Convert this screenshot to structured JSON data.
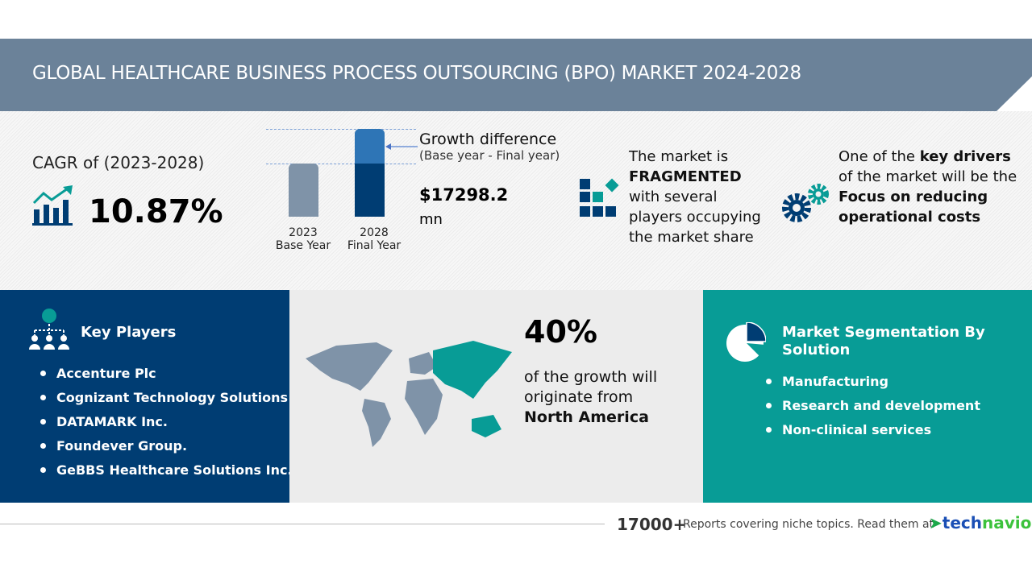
{
  "header": {
    "title": "GLOBAL HEALTHCARE BUSINESS PROCESS OUTSOURCING (BPO) MARKET 2024-2028"
  },
  "cagr": {
    "label": "CAGR of (2023-2028)",
    "value": "10.87%",
    "icon": "growth-chart-icon"
  },
  "growth": {
    "base_year": "2023",
    "base_label": "Base Year",
    "final_year": "2028",
    "final_label": "Final Year",
    "title": "Growth difference",
    "subtitle": "(Base year - Final year)",
    "value": "$17298.2",
    "unit": "mn"
  },
  "market": {
    "line1": "The market is",
    "bold": "FRAGMENTED",
    "rest": "with several players occupying the market share"
  },
  "drivers": {
    "pre": "One of the ",
    "bold1": "key drivers",
    "mid": " of the market will be the ",
    "bold2": "Focus on reducing operational costs"
  },
  "key_players": {
    "title": "Key Players",
    "items": [
      "Accenture Plc",
      "Cognizant Technology Solutions C...",
      "DATAMARK Inc.",
      "Foundever Group.",
      "GeBBS Healthcare Solutions Inc."
    ]
  },
  "region": {
    "percent": "40%",
    "text": "of the growth will originate from",
    "name": "North America"
  },
  "segmentation": {
    "title": "Market Segmentation By Solution",
    "items": [
      "Manufacturing",
      "Research and development",
      "Non-clinical services"
    ]
  },
  "footer": {
    "count": "17000+",
    "text": "Reports covering niche topics. Read them at",
    "brand1": "tech",
    "brand2": "navio"
  },
  "colors": {
    "navy": "#003d73",
    "teal": "#089c96",
    "header": "#6b8299"
  }
}
